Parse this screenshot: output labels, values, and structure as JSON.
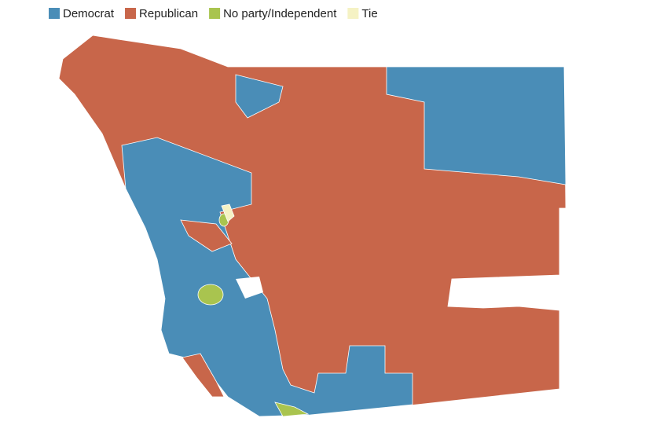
{
  "legend": {
    "items": [
      {
        "label": "Democrat",
        "color": "#4a8db7"
      },
      {
        "label": "Republican",
        "color": "#c8664a"
      },
      {
        "label": "No party/Independent",
        "color": "#a9c44f"
      },
      {
        "label": "Tie",
        "color": "#f5f2c4"
      }
    ]
  }
}
